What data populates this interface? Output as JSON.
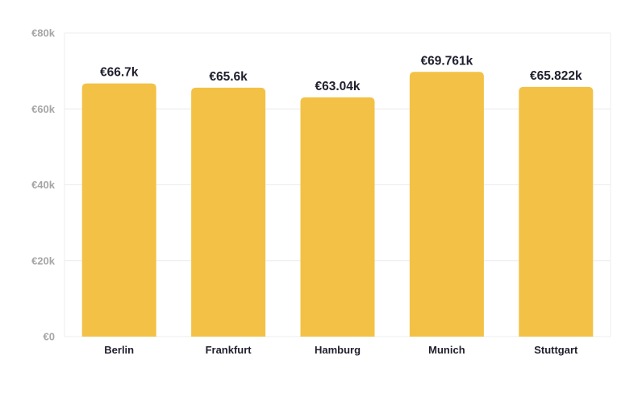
{
  "chart_data": {
    "type": "bar",
    "title": "",
    "xlabel": "",
    "ylabel": "",
    "categories": [
      "Berlin",
      "Frankfurt",
      "Hamburg",
      "Munich",
      "Stuttgart"
    ],
    "values": [
      66700,
      65600,
      63040,
      69761,
      65822
    ],
    "data_labels": [
      "€66.7k",
      "€65.6k",
      "€63.04k",
      "€69.761k",
      "€65.822k"
    ],
    "ylim": [
      0,
      80000
    ],
    "y_ticks": [
      0,
      20000,
      40000,
      60000,
      80000
    ],
    "y_tick_labels": [
      "€0",
      "€20k",
      "€40k",
      "€60k",
      "€80k"
    ],
    "grid": true,
    "legend": "none",
    "colors": {
      "bar": "#f3c145",
      "grid": "#ececec",
      "tick_text": "#a6a6a6",
      "label_text": "#1f1f2e"
    }
  }
}
